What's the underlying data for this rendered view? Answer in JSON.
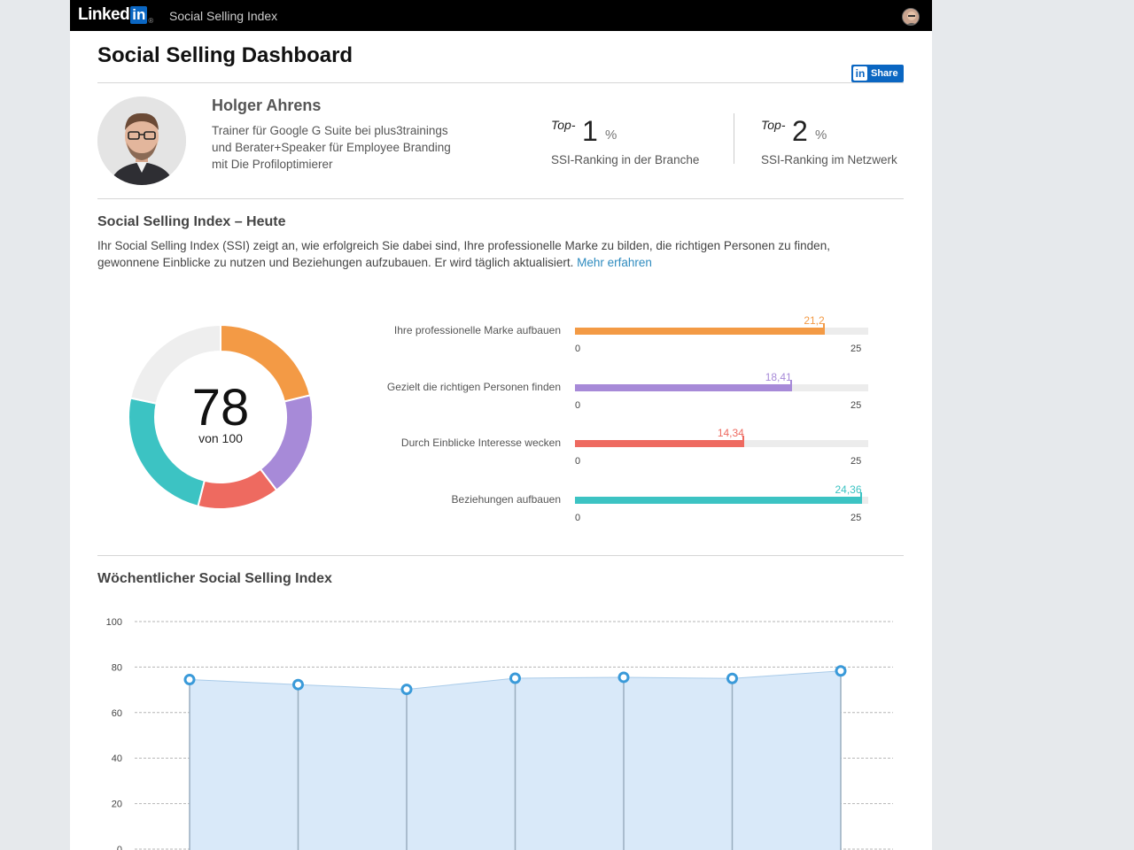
{
  "header": {
    "logo_word": "Linked",
    "logo_in": "in",
    "logo_reg": "®",
    "app_title": "Social Selling Index"
  },
  "page": {
    "title": "Social Selling Dashboard",
    "share_icon": "in",
    "share_label": "Share"
  },
  "profile": {
    "name": "Holger Ahrens",
    "headline": "Trainer für Google G Suite bei plus3trainings und Berater+Speaker für Employee Branding mit Die Profiloptimierer"
  },
  "rankings": [
    {
      "top_label": "Top-",
      "value": "1",
      "unit": "%",
      "description": "SSI-Ranking in der Branche"
    },
    {
      "top_label": "Top-",
      "value": "2",
      "unit": "%",
      "description": "SSI-Ranking im Netzwerk"
    }
  ],
  "today": {
    "title": "Social Selling Index – Heute",
    "intro": "Ihr Social Selling Index (SSI) zeigt an, wie erfolgreich Sie dabei sind, Ihre professionelle Marke zu bilden, die richtigen Personen zu finden, gewonnene Einblicke zu nutzen und Beziehungen aufzubauen. Er wird täglich aktualisiert.",
    "learn_more": "Mehr erfahren",
    "score": "78",
    "score_sub": "von 100"
  },
  "colors": {
    "brand": "#0a66c2",
    "orange": "#f39a45",
    "purple": "#a78ad8",
    "red": "#ee6a60",
    "teal": "#3cc3c3",
    "donut_rest": "#eeeeee",
    "line": "#3a9ad9",
    "area": "#d9e9f9"
  },
  "chart_data": [
    {
      "type": "pie",
      "title": "",
      "total": 100,
      "slices": [
        {
          "name": "Ihre professionelle Marke aufbauen",
          "value": 21.2,
          "color": "#f39a45"
        },
        {
          "name": "Gezielt die richtigen Personen finden",
          "value": 18.41,
          "color": "#a78ad8"
        },
        {
          "name": "Durch Einblicke Interesse wecken",
          "value": 14.34,
          "color": "#ee6a60"
        },
        {
          "name": "Beziehungen aufbauen",
          "value": 24.36,
          "color": "#3cc3c3"
        }
      ]
    },
    {
      "type": "bar",
      "orientation": "horizontal",
      "title": "",
      "xlim": [
        0,
        25
      ],
      "tick_min": "0",
      "tick_max": "25",
      "bars": [
        {
          "label": "Ihre professionelle Marke aufbauen",
          "value": 21.2,
          "value_label": "21,2",
          "color": "#f39a45"
        },
        {
          "label": "Gezielt die richtigen Personen finden",
          "value": 18.41,
          "value_label": "18,41",
          "color": "#a78ad8"
        },
        {
          "label": "Durch Einblicke Interesse wecken",
          "value": 14.34,
          "value_label": "14,34",
          "color": "#ee6a60"
        },
        {
          "label": "Beziehungen aufbauen",
          "value": 24.36,
          "value_label": "24,36",
          "color": "#3cc3c3"
        }
      ]
    },
    {
      "type": "area",
      "title": "Wöchentlicher Social Selling Index",
      "xlabel": "",
      "ylabel": "",
      "ylim": [
        0,
        100
      ],
      "yticks": [
        0,
        20,
        40,
        60,
        80,
        100
      ],
      "grid": true,
      "values": [
        74.5,
        72.3,
        70.2,
        75.1,
        75.5,
        75.0,
        78.3
      ]
    }
  ]
}
